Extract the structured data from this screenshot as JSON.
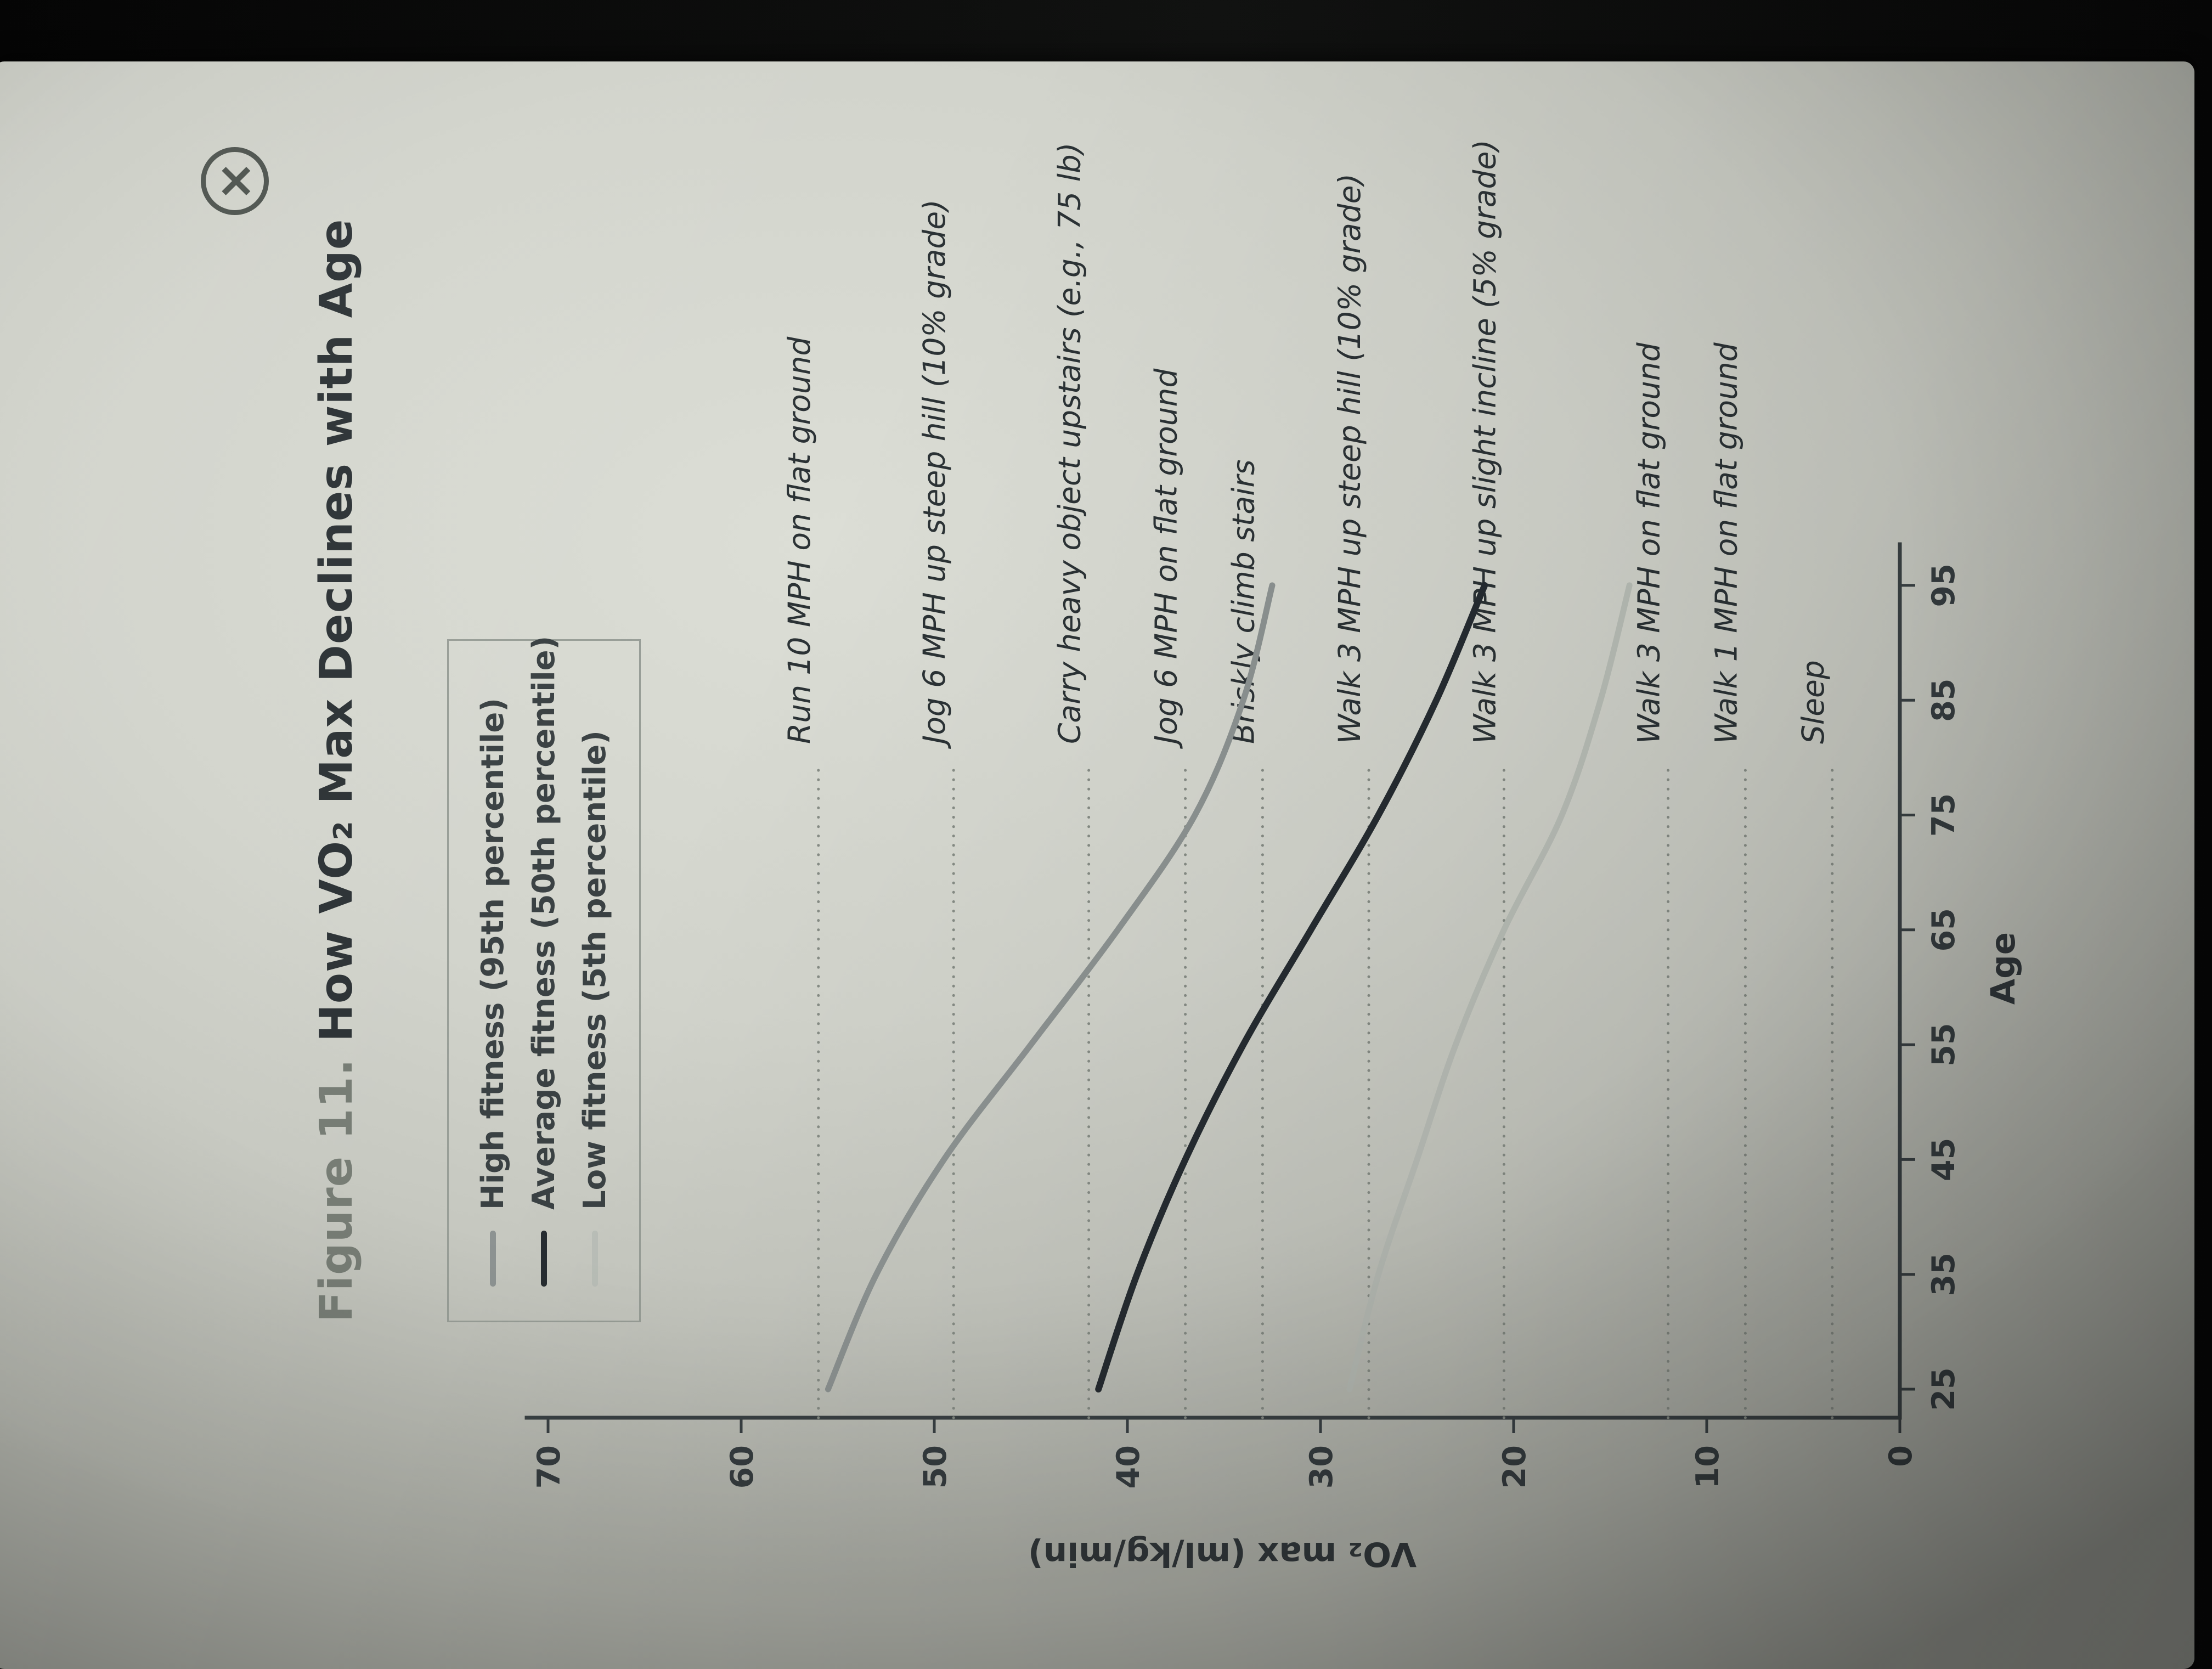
{
  "window": {
    "close_icon": "×"
  },
  "figure": {
    "title_prefix": "Figure 11.",
    "title_main": "How VO₂ Max Declines with Age"
  },
  "legend": {
    "items": [
      {
        "label": "High fitness (95th percentile)",
        "color": "#8d9392"
      },
      {
        "label": "Average fitness (50th percentile)",
        "color": "#262c31"
      },
      {
        "label": "Low fitness (5th percentile)",
        "color": "#b9beb7"
      }
    ]
  },
  "chart_data": {
    "type": "line",
    "title": "Figure 11. How VO₂ Max Declines with Age",
    "xlabel": "Age",
    "ylabel": "VO₂ max (ml/kg/min)",
    "x_ticks": [
      25,
      35,
      45,
      55,
      65,
      75,
      85,
      95
    ],
    "y_ticks": [
      0,
      10,
      20,
      30,
      40,
      50,
      60,
      70
    ],
    "xlim": [
      25,
      95
    ],
    "ylim": [
      0,
      70
    ],
    "grid": "off",
    "legend_position": "top-left",
    "x": [
      25,
      35,
      45,
      55,
      65,
      75,
      85,
      95
    ],
    "series": [
      {
        "name": "High fitness (95th percentile)",
        "color": "#8d9392",
        "values": [
          55.5,
          53,
          49.5,
          45,
          40.5,
          36.5,
          34,
          32.5
        ]
      },
      {
        "name": "Average fitness (50th percentile)",
        "color": "#262c31",
        "values": [
          41.5,
          39.5,
          37,
          34,
          30.5,
          27,
          24,
          21.5
        ]
      },
      {
        "name": "Low fitness (5th percentile)",
        "color": "#b9beb7",
        "values": [
          28.5,
          27,
          25,
          23,
          20.5,
          17.5,
          15.5,
          14
        ]
      }
    ],
    "reference_lines": [
      {
        "label": "Run 10 MPH on flat ground",
        "vo2": 56
      },
      {
        "label": "Jog 6 MPH up steep hill (10% grade)",
        "vo2": 49
      },
      {
        "label": "Carry heavy object upstairs (e.g., 75 lb)",
        "vo2": 42
      },
      {
        "label": "Jog 6 MPH on flat ground",
        "vo2": 37
      },
      {
        "label": "Briskly climb stairs",
        "vo2": 33
      },
      {
        "label": "Walk 3 MPH up steep hill (10% grade)",
        "vo2": 27.5
      },
      {
        "label": "Walk 3 MPH up slight incline (5% grade)",
        "vo2": 20.5
      },
      {
        "label": "Walk 3 MPH on flat ground",
        "vo2": 12
      },
      {
        "label": "Walk 1 MPH on flat ground",
        "vo2": 8
      },
      {
        "label": "Sleep",
        "vo2": 3.5
      }
    ]
  }
}
